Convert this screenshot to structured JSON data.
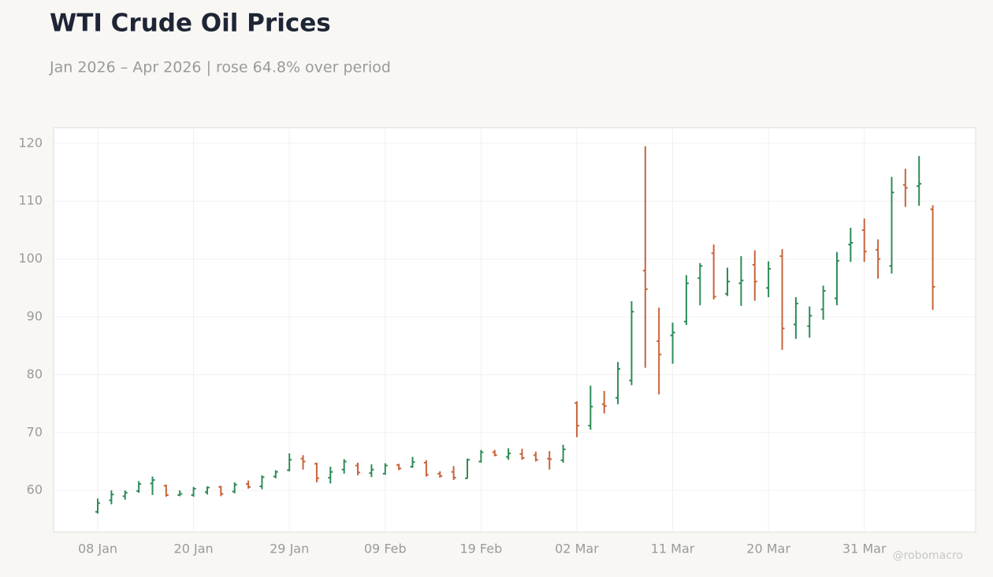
{
  "chart_data": {
    "type": "ohlc",
    "title": "WTI Crude Oil Prices",
    "subtitle": "Jan 2026 – Apr 2026 | rose 64.8% over period",
    "watermark": "@robomacro",
    "categories": [
      "08 Jan",
      null,
      null,
      null,
      null,
      null,
      null,
      "20 Jan",
      null,
      null,
      null,
      null,
      null,
      null,
      "29 Jan",
      null,
      null,
      null,
      null,
      null,
      null,
      "09 Feb",
      null,
      null,
      null,
      null,
      null,
      null,
      "19 Feb",
      null,
      null,
      null,
      null,
      null,
      null,
      "02 Mar",
      null,
      null,
      null,
      null,
      null,
      null,
      "11 Mar",
      null,
      null,
      null,
      null,
      null,
      null,
      "20 Mar",
      null,
      null,
      null,
      null,
      null,
      null,
      "31 Mar",
      null,
      null,
      null,
      null,
      null
    ],
    "open": [
      56.3,
      58.3,
      59.0,
      59.9,
      61.2,
      60.8,
      59.2,
      59.2,
      59.7,
      60.6,
      59.8,
      61.1,
      60.7,
      62.4,
      63.5,
      65.5,
      64.6,
      62.2,
      63.6,
      64.3,
      63.0,
      62.9,
      64.4,
      64.1,
      64.8,
      62.9,
      63.2,
      62.1,
      65.0,
      66.6,
      65.8,
      66.3,
      66.1,
      65.5,
      65.2,
      75.1,
      71.2,
      74.9,
      76.0,
      79.0,
      98.0,
      85.8,
      86.8,
      89.2,
      96.7,
      101.0,
      94.0,
      95.8,
      99.0,
      95.0,
      100.5,
      88.7,
      88.4,
      91.3,
      93.2,
      102.5,
      105.0,
      101.6,
      98.8,
      112.8,
      112.6,
      108.6
    ],
    "high": [
      58.6,
      60.0,
      60.0,
      61.6,
      62.4,
      61.0,
      60.0,
      60.6,
      60.7,
      60.8,
      61.4,
      61.7,
      62.6,
      63.5,
      66.4,
      66.1,
      64.8,
      64.1,
      65.4,
      64.8,
      64.5,
      64.7,
      64.6,
      65.8,
      65.2,
      63.3,
      64.2,
      65.5,
      67.0,
      67.0,
      67.3,
      67.2,
      66.7,
      66.8,
      67.9,
      75.4,
      78.1,
      77.2,
      82.2,
      92.7,
      119.5,
      91.6,
      89.0,
      97.2,
      99.3,
      102.5,
      98.5,
      100.5,
      101.5,
      99.6,
      101.7,
      93.4,
      91.8,
      95.4,
      101.2,
      105.4,
      107.0,
      103.4,
      114.2,
      115.6,
      117.8,
      109.3
    ],
    "low": [
      56.0,
      57.6,
      58.4,
      59.6,
      59.2,
      58.9,
      59.0,
      58.9,
      59.3,
      59.0,
      59.5,
      60.3,
      60.2,
      62.1,
      63.3,
      63.6,
      61.4,
      61.2,
      62.9,
      62.6,
      62.3,
      62.7,
      63.5,
      63.9,
      62.4,
      62.2,
      61.8,
      62.0,
      64.8,
      65.9,
      65.3,
      65.3,
      65.0,
      63.6,
      64.8,
      69.2,
      70.5,
      73.3,
      74.9,
      78.2,
      81.2,
      76.6,
      81.9,
      88.6,
      92.0,
      93.0,
      93.6,
      91.9,
      92.8,
      93.4,
      84.3,
      86.2,
      86.4,
      89.5,
      92.0,
      99.5,
      99.5,
      96.6,
      97.5,
      109.0,
      109.2,
      91.2
    ],
    "close": [
      57.8,
      59.3,
      59.6,
      61.1,
      61.8,
      59.2,
      59.4,
      60.3,
      60.5,
      59.4,
      61.0,
      60.6,
      62.3,
      63.2,
      65.3,
      65.0,
      62.1,
      63.2,
      65.0,
      63.1,
      63.6,
      64.3,
      63.8,
      64.9,
      62.7,
      62.5,
      62.2,
      65.3,
      66.6,
      66.1,
      66.4,
      65.6,
      65.3,
      65.4,
      67.1,
      71.2,
      74.5,
      74.6,
      81.0,
      90.9,
      94.8,
      83.5,
      87.3,
      95.8,
      98.8,
      93.5,
      96.1,
      96.3,
      96.1,
      98.3,
      88.0,
      92.3,
      90.2,
      94.5,
      99.7,
      102.8,
      101.3,
      100.0,
      111.5,
      112.3,
      113.0,
      95.2
    ],
    "up_color": "#2e8b57",
    "down_color": "#c8643c",
    "ylim": [
      52.8,
      122.7
    ],
    "yticks": [
      60,
      70,
      80,
      90,
      100,
      110,
      120
    ],
    "grid": true
  }
}
